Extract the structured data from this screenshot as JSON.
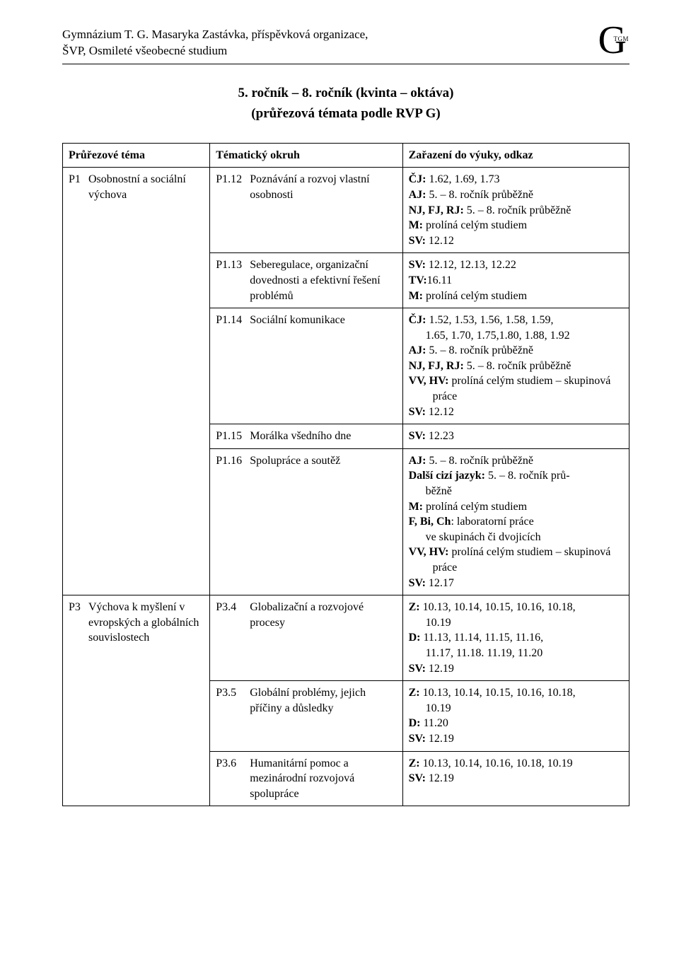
{
  "header": {
    "line1": "Gymnázium T. G. Masaryka  Zastávka, příspěvková organizace,",
    "line2": "ŠVP,  Osmileté všeobecné studium",
    "logo_big": "G",
    "logo_small": "TGM"
  },
  "title": {
    "line1": "5. ročník – 8. ročník (kvinta – oktáva)",
    "line2": "(průřezová témata podle RVP G)"
  },
  "table": {
    "headers": {
      "c1": "Průřezové téma",
      "c2": "Tématický okruh",
      "c3": "Zařazení do výuky, odkaz"
    },
    "p1": {
      "idx": "P1",
      "label": "Osobnostní a sociální výchova",
      "r1": {
        "code": "P1.12",
        "topic": "Poznávání a rozvoj vlastní osobnosti",
        "refs": [
          {
            "b": "ČJ:",
            "t": " 1.62, 1.69, 1.73"
          },
          {
            "b": "AJ:",
            "t": " 5. – 8. ročník průběžně"
          },
          {
            "b": "NJ, FJ, RJ:",
            "t": " 5. – 8. ročník průběžně"
          },
          {
            "b": "M:",
            "t": " prolíná celým studiem"
          },
          {
            "b": "SV:",
            "t": " 12.12"
          }
        ]
      },
      "r2": {
        "code": "P1.13",
        "topic": "Seberegulace, organizační dovednosti a efektivní řešení problémů",
        "refs": [
          {
            "b": "SV:",
            "t": " 12.12, 12.13, 12.22"
          },
          {
            "b": "TV:",
            "t": "16.11"
          },
          {
            "b": "M:",
            "t": " prolíná celým studiem"
          }
        ]
      },
      "r3": {
        "code": "P1.14",
        "topic": "Sociální komunikace",
        "refs_multi": {
          "line1": {
            "b": "ČJ:",
            "t": " 1.52, 1.53, 1.56, 1.58, 1.59,"
          },
          "line1b": "1.65, 1.70,  1.75,1.80, 1.88, 1.92",
          "rest": [
            {
              "b": "AJ:",
              "t": " 5. – 8. ročník průběžně"
            },
            {
              "b": "NJ, FJ, RJ:",
              "t": " 5. – 8. ročník průběžně"
            },
            {
              "b": "VV, HV:",
              "t": " prolíná celým studiem – skupinová práce"
            },
            {
              "b": "SV:",
              "t": " 12.12"
            }
          ]
        }
      },
      "r4": {
        "code": "P1.15",
        "topic": "Morálka všedního dne",
        "refs": [
          {
            "b": "SV:",
            "t": " 12.23"
          }
        ]
      },
      "r5": {
        "code": "P1.16",
        "topic": "Spolupráce a soutěž",
        "refs_mixed": {
          "l1": {
            "b": "AJ:",
            "t": " 5. – 8. ročník průběžně"
          },
          "l2a": {
            "b": "Další cizí jazyk:",
            "t": " 5. – 8. ročník prů-"
          },
          "l2b": "běžně",
          "rest": [
            {
              "b": "M:",
              "t": " prolíná celým studiem"
            },
            {
              "b": "F, Bi, Ch",
              "t": ": laboratorní práce"
            }
          ],
          "sub": "ve skupinách či dvojicích",
          "rest2": [
            {
              "b": "VV, HV:",
              "t": " prolíná celým studiem – skupinová práce"
            },
            {
              "b": "SV:",
              "t": " 12.17"
            }
          ]
        }
      }
    },
    "p3": {
      "idx": "P3",
      "label": "Výchova k myšlení v evropských a globálních souvislostech",
      "r1": {
        "code": "P3.4",
        "topic": "Globalizační a rozvojové procesy",
        "refs_multi2": {
          "z1": {
            "b": "Z:",
            "t": " 10.13, 10.14, 10.15, 10.16, 10.18,"
          },
          "z1b": "10.19",
          "d1": {
            "b": "D:",
            "t": " 11.13, 11.14, 11.15, 11.16,"
          },
          "d1b": "11.17, 11.18. 11.19, 11.20",
          "sv": {
            "b": "SV:",
            "t": " 12.19"
          }
        }
      },
      "r2": {
        "code": "P3.5",
        "topic": "Globální problémy, jejich příčiny a důsledky",
        "refs_multi2": {
          "z1": {
            "b": "Z:",
            "t": " 10.13, 10.14, 10.15, 10.16, 10.18,"
          },
          "z1b": "10.19",
          "d": {
            "b": "D:",
            "t": " 11.20"
          },
          "sv": {
            "b": "SV:",
            "t": " 12.19"
          }
        }
      },
      "r3": {
        "code": "P3.6",
        "topic": "Humanitární pomoc a mezinárodní rozvojová spolupráce",
        "refs": [
          {
            "b": "Z:",
            "t": " 10.13, 10.14, 10.16, 10.18, 10.19"
          },
          {
            "b": "SV:",
            "t": " 12.19"
          }
        ]
      }
    }
  }
}
